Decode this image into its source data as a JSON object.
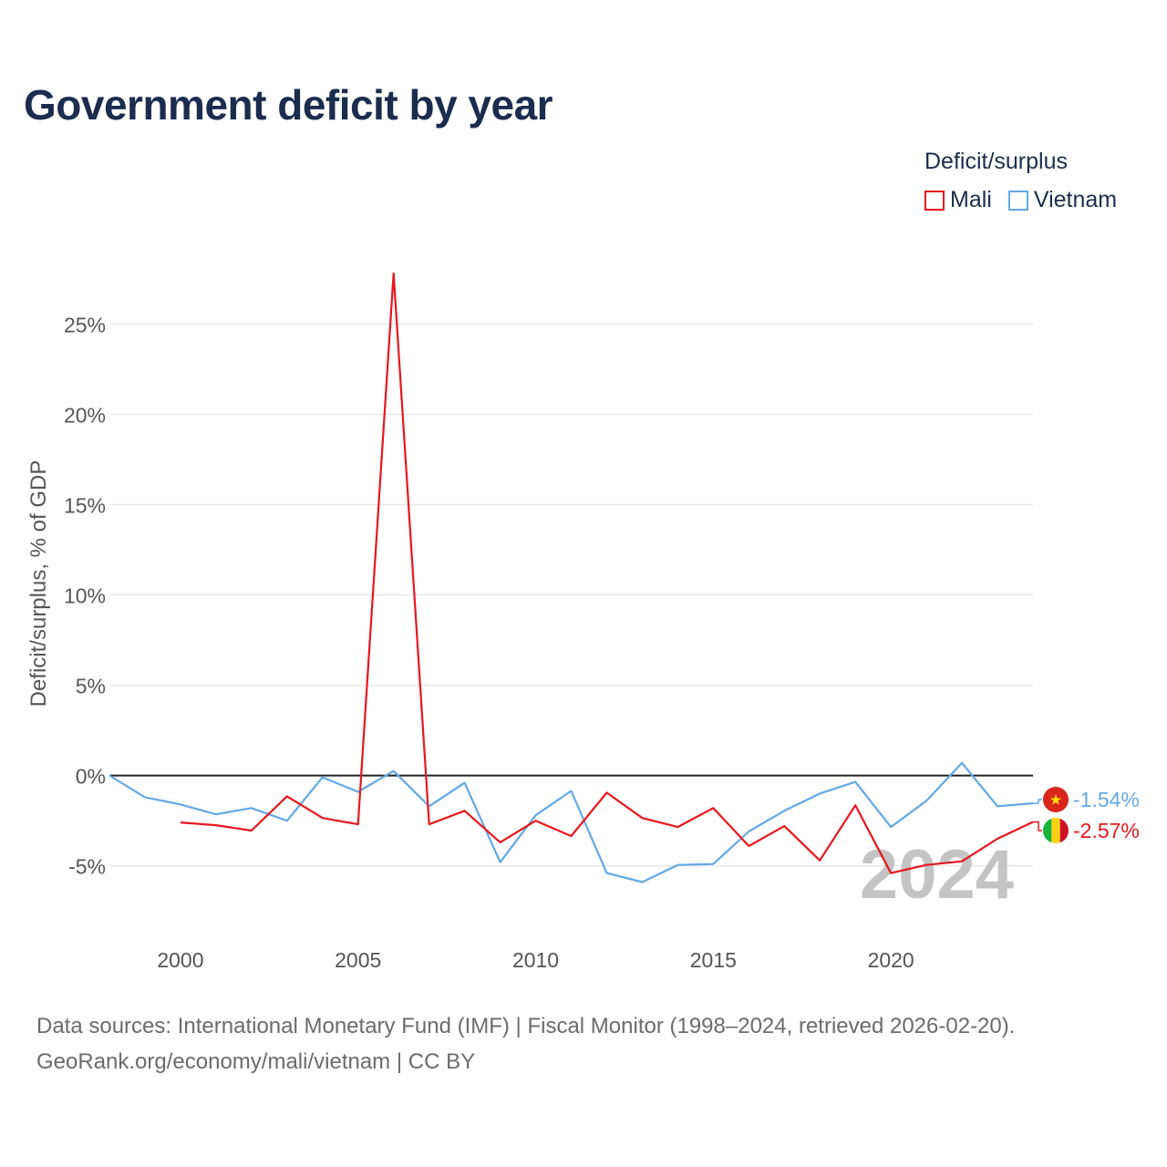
{
  "title": "Government deficit by year",
  "legend": {
    "title": "Deficit/surplus",
    "items": [
      {
        "name": "Mali",
        "color": "#e8161c"
      },
      {
        "name": "Vietnam",
        "color": "#62a8e6"
      }
    ]
  },
  "watermark_year": "2024",
  "footer": {
    "line1": "Data sources: International Monetary Fund (IMF) | Fiscal Monitor (1998–2024, retrieved 2026-02-20).",
    "line2": "GeoRank.org/economy/mali/vietnam | CC BY"
  },
  "chart_data": {
    "type": "line",
    "title": "Government deficit by year",
    "xlabel": "",
    "ylabel": "Deficit/surplus, % of GDP",
    "xlim": [
      1998,
      2024
    ],
    "ylim": [
      -8.5,
      28
    ],
    "x_ticks": [
      2000,
      2005,
      2010,
      2015,
      2020
    ],
    "y_ticks": [
      -5,
      0,
      5,
      10,
      15,
      20,
      25
    ],
    "y_tick_labels": [
      "-5%",
      "0%",
      "5%",
      "10%",
      "15%",
      "20%",
      "25%"
    ],
    "grid": true,
    "legend_position": "top-right",
    "series": [
      {
        "name": "Mali",
        "color": "#e8161c",
        "end_label": "-2.57%",
        "x": [
          2000,
          2001,
          2002,
          2003,
          2004,
          2005,
          2006,
          2007,
          2008,
          2009,
          2010,
          2011,
          2012,
          2013,
          2014,
          2015,
          2016,
          2017,
          2018,
          2019,
          2020,
          2021,
          2022,
          2023,
          2024
        ],
        "values": [
          -2.6,
          -2.75,
          -3.05,
          -1.15,
          -2.35,
          -2.7,
          27.8,
          -2.7,
          -1.95,
          -3.7,
          -2.5,
          -3.35,
          -0.95,
          -2.35,
          -2.85,
          -1.8,
          -3.9,
          -2.8,
          -4.7,
          -1.65,
          -5.4,
          -4.95,
          -4.75,
          -3.5,
          -2.57
        ]
      },
      {
        "name": "Vietnam",
        "color": "#62a8e6",
        "end_label": "-1.54%",
        "x": [
          1998,
          1999,
          2000,
          2001,
          2002,
          2003,
          2004,
          2005,
          2006,
          2007,
          2008,
          2009,
          2010,
          2011,
          2012,
          2013,
          2014,
          2015,
          2016,
          2017,
          2018,
          2019,
          2020,
          2021,
          2022,
          2023,
          2024
        ],
        "values": [
          0.0,
          -1.2,
          -1.6,
          -2.15,
          -1.8,
          -2.5,
          -0.1,
          -0.9,
          0.25,
          -1.7,
          -0.4,
          -4.8,
          -2.2,
          -0.85,
          -5.4,
          -5.9,
          -4.95,
          -4.9,
          -3.1,
          -1.95,
          -1.0,
          -0.35,
          -2.85,
          -1.4,
          0.7,
          -1.7,
          -1.54
        ]
      }
    ]
  }
}
